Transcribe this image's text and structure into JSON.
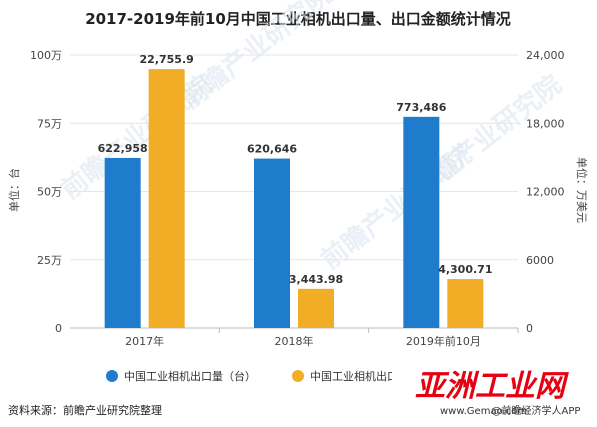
{
  "chart_data": {
    "type": "bar",
    "title": "2017-2019年前10月中国工业相机出口量、出口金额统计情况",
    "categories": [
      "2017年",
      "2018年",
      "2019年前10月"
    ],
    "series": [
      {
        "name": "中国工业相机出口量（台）",
        "axis": "left",
        "color": "#1f7ccc",
        "values": [
          622958,
          620646,
          773486
        ],
        "labels": [
          "622,958",
          "620,646",
          "773,486"
        ]
      },
      {
        "name": "中国工业相机出口金额（万美元）",
        "axis": "right",
        "color": "#f0ad25",
        "values": [
          22755.9,
          3443.98,
          4300.71
        ],
        "labels": [
          "22,755.9",
          "3,443.98",
          "4,300.71"
        ]
      }
    ],
    "left_axis": {
      "label": "单位：台",
      "ylim": [
        0,
        1000000
      ],
      "ticks": [
        0,
        250000,
        500000,
        750000,
        1000000
      ],
      "tick_labels": [
        "0",
        "25万",
        "50万",
        "75万",
        "100万"
      ]
    },
    "right_axis": {
      "label": "单位：万美元",
      "ylim": [
        0,
        24000
      ],
      "ticks": [
        0,
        6000,
        12000,
        18000,
        24000
      ],
      "tick_labels": [
        "0",
        "6000",
        "12,000",
        "18,000",
        "24,000"
      ]
    },
    "legend": "bottom"
  },
  "legend_items": [
    "中国工业相机出口量（台）",
    "中国工业相机出口金额（万美元）"
  ],
  "source": "资料来源：前瞻产业研究院整理",
  "watermark": "前瞻产业研究院",
  "logo": {
    "main": "亚洲工业网",
    "sub": "www.Gemao.com",
    "corner": "@前瞻经济学人APP"
  }
}
